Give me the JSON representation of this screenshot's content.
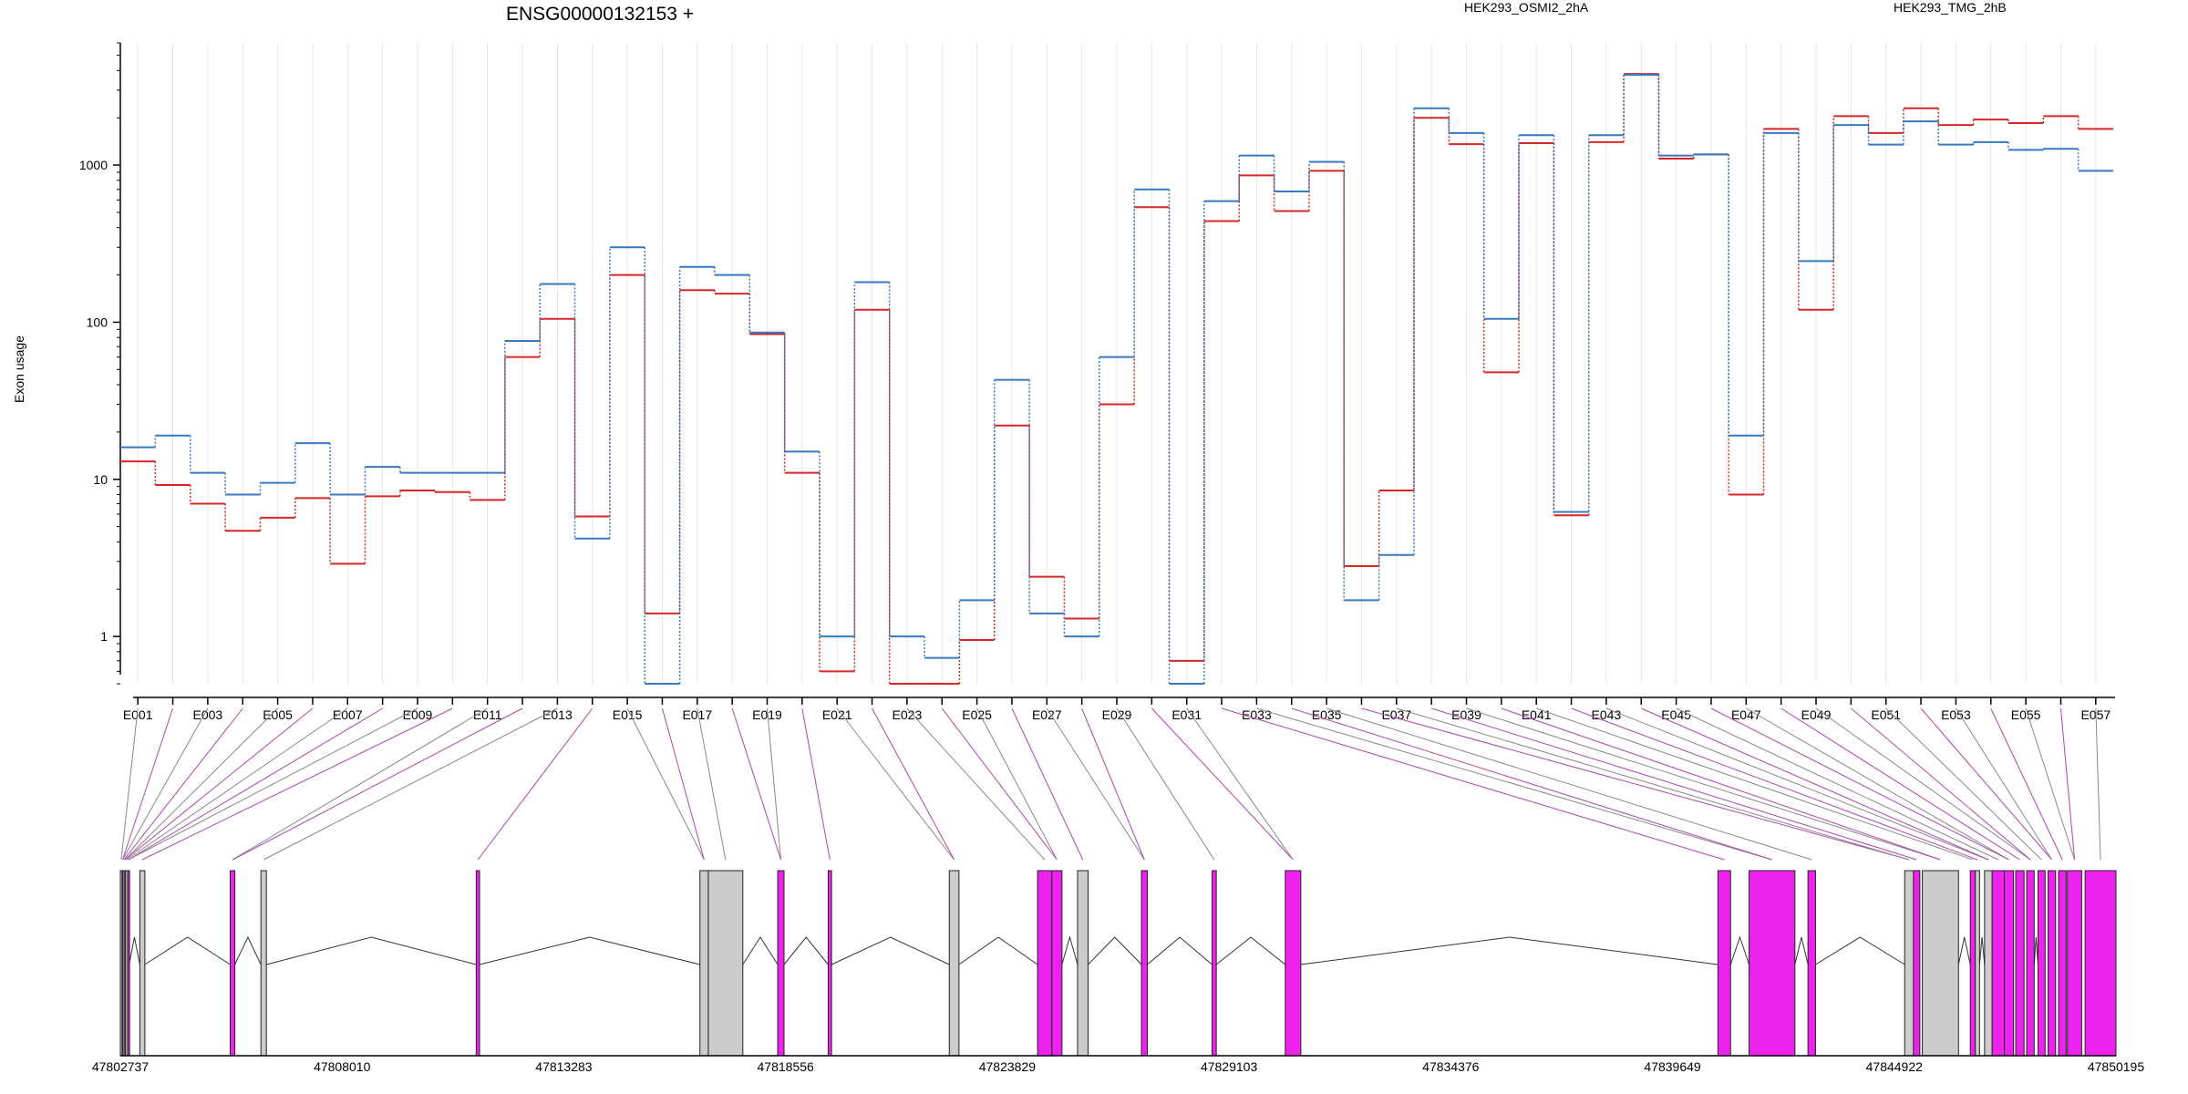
{
  "chart_data": {
    "type": "line",
    "title": "ENSG00000132153 +",
    "ylabel": "Exon usage",
    "yscale": "log",
    "ylim": [
      0.5,
      6000
    ],
    "yticks": [
      1,
      10,
      100,
      1000
    ],
    "ytick_labels": [
      "1",
      "10",
      "100",
      "1000"
    ],
    "grid": "vertical",
    "legend": "top",
    "colors": {
      "HEK293_OSMI2_2hA": "#d62728",
      "HEK293_TMG_2hB": "#3778bf",
      "exon_spliced": "#ee22ee",
      "exon_plain": "#cccccc"
    },
    "exons": [
      "E001",
      "E002",
      "E003",
      "E004",
      "E005",
      "E006",
      "E007",
      "E008",
      "E009",
      "E010",
      "E011",
      "E012",
      "E013",
      "E014",
      "E015",
      "E016",
      "E017",
      "E018",
      "E019",
      "E020",
      "E021",
      "E022",
      "E023",
      "E024",
      "E025",
      "E026",
      "E027",
      "E028",
      "E029",
      "E030",
      "E031",
      "E032",
      "E033",
      "E034",
      "E035",
      "E036",
      "E037",
      "E038",
      "E039",
      "E040",
      "E041",
      "E042",
      "E043",
      "E044",
      "E045",
      "E046",
      "E047",
      "E048",
      "E049",
      "E050",
      "E051",
      "E052",
      "E053",
      "E054",
      "E055",
      "E056",
      "E057"
    ],
    "xtick_labels": [
      "E001",
      "E003",
      "E005",
      "E007",
      "E009",
      "E011",
      "E013",
      "E015",
      "E017",
      "E019",
      "E021",
      "E023",
      "E025",
      "E027",
      "E029",
      "E031",
      "E033",
      "E035",
      "E037",
      "E039",
      "E041",
      "E043",
      "E045",
      "E047",
      "E049",
      "E051",
      "E053",
      "E055",
      "E057"
    ],
    "series": [
      {
        "name": "HEK293_OSMI2_2hA",
        "values": [
          13,
          9.2,
          7,
          4.7,
          5.7,
          7.6,
          2.9,
          7.8,
          8.5,
          8.3,
          7.4,
          60,
          105,
          5.8,
          200,
          1.4,
          160,
          152,
          84,
          11,
          0.6,
          120,
          0.5,
          0.5,
          0.95,
          22,
          2.4,
          1.3,
          30,
          540,
          0.7,
          440,
          860,
          510,
          920,
          2.8,
          8.5,
          2000,
          1360,
          48,
          1380,
          5.9,
          1400,
          3800,
          1100,
          1170,
          8,
          1700,
          120,
          2050,
          1600,
          2300,
          1800,
          1950,
          1850,
          2050,
          1700
        ]
      },
      {
        "name": "HEK293_TMG_2hB",
        "values": [
          16,
          19,
          11,
          8,
          9.5,
          17,
          8,
          12,
          11,
          11,
          11,
          76,
          175,
          4.2,
          300,
          0.5,
          225,
          200,
          86,
          15,
          1,
          180,
          1,
          0.73,
          1.7,
          43,
          1.4,
          1,
          60,
          700,
          0.5,
          590,
          1150,
          680,
          1050,
          1.7,
          3.3,
          2300,
          1600,
          105,
          1550,
          6.2,
          1550,
          3750,
          1150,
          1170,
          19,
          1600,
          245,
          1800,
          1350,
          1900,
          1350,
          1400,
          1250,
          1270,
          920
        ]
      }
    ],
    "genomic_ticks": [
      "47802737",
      "47808010",
      "47813283",
      "47818556",
      "47823829",
      "47829103",
      "47834376",
      "47839649",
      "47844922",
      "47850195"
    ],
    "exon_intervals": [
      [
        47802737,
        47802778,
        "plain"
      ],
      [
        47802778,
        47802803,
        "spliced"
      ],
      [
        47802803,
        47802840,
        "plain"
      ],
      [
        47802840,
        47802862,
        "spliced"
      ],
      [
        47802862,
        47802913,
        "plain"
      ],
      [
        47802913,
        47802945,
        "spliced"
      ],
      [
        47803200,
        47803320,
        "plain"
      ],
      [
        47805350,
        47805460,
        "spliced"
      ],
      [
        47806080,
        47806210,
        "plain"
      ],
      [
        47811200,
        47811280,
        "spliced"
      ],
      [
        47816520,
        47816720,
        "plain"
      ],
      [
        47816720,
        47817540,
        "plain"
      ],
      [
        47818370,
        47818520,
        "spliced"
      ],
      [
        47819570,
        47819650,
        "spliced"
      ],
      [
        47822450,
        47822680,
        "plain"
      ],
      [
        47824550,
        47824890,
        "spliced"
      ],
      [
        47824890,
        47825130,
        "spliced"
      ],
      [
        47825500,
        47825750,
        "plain"
      ],
      [
        47827020,
        47827160,
        "spliced"
      ],
      [
        47828700,
        47828800,
        "spliced"
      ],
      [
        47830440,
        47830810,
        "spliced"
      ],
      [
        47840730,
        47841030,
        "spliced"
      ],
      [
        47841470,
        47842560,
        "spliced"
      ],
      [
        47842870,
        47843050,
        "spliced"
      ],
      [
        47845170,
        47845380,
        "plain"
      ],
      [
        47845380,
        47845530,
        "spliced"
      ],
      [
        47845590,
        47846450,
        "plain"
      ],
      [
        47846730,
        47846850,
        "spliced"
      ],
      [
        47846850,
        47846950,
        "plain"
      ],
      [
        47847070,
        47847250,
        "plain"
      ],
      [
        47847250,
        47847540,
        "spliced"
      ],
      [
        47847540,
        47847760,
        "spliced"
      ],
      [
        47847810,
        47848010,
        "spliced"
      ],
      [
        47848070,
        47848250,
        "spliced"
      ],
      [
        47848340,
        47848510,
        "spliced"
      ],
      [
        47848580,
        47848760,
        "spliced"
      ],
      [
        47848830,
        47849010,
        "spliced"
      ],
      [
        47849040,
        47849380,
        "spliced"
      ],
      [
        47849460,
        47850195,
        "spliced"
      ]
    ]
  }
}
